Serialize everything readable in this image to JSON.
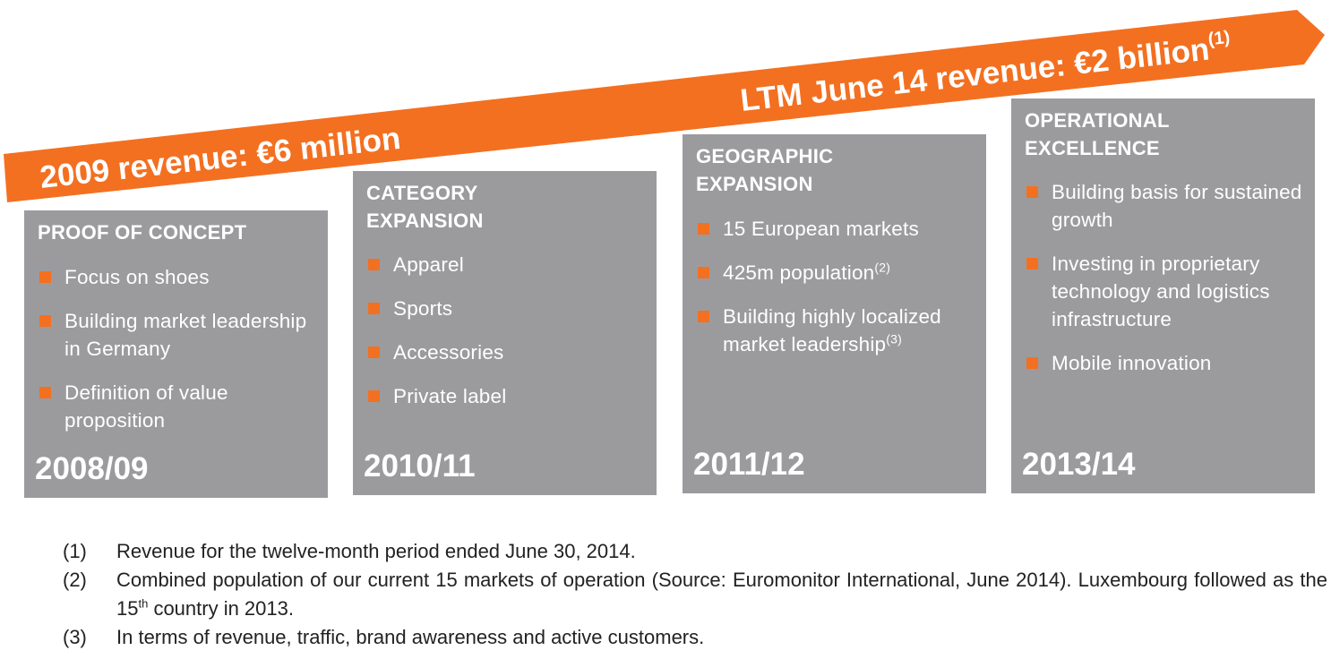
{
  "arrow": {
    "color": "#f37021",
    "start_label": "2009 revenue: €6 million",
    "end_label": "LTM June 14 revenue: €2 billion",
    "end_label_sup": "(1)"
  },
  "bullet_color": "#f37021",
  "box_color": "#9b9b9e",
  "stages": [
    {
      "title": "PROOF OF CONCEPT",
      "items": [
        {
          "text": "Focus on shoes",
          "sup": ""
        },
        {
          "text": "Building market leadership in Germany",
          "sup": ""
        },
        {
          "text": "Definition of value proposition",
          "sup": ""
        }
      ],
      "year": "2008/09"
    },
    {
      "title": "CATEGORY EXPANSION",
      "items": [
        {
          "text": "Apparel",
          "sup": ""
        },
        {
          "text": "Sports",
          "sup": ""
        },
        {
          "text": "Accessories",
          "sup": ""
        },
        {
          "text": "Private label",
          "sup": ""
        }
      ],
      "year": "2010/11"
    },
    {
      "title": "GEOGRAPHIC EXPANSION",
      "items": [
        {
          "text": "15 European markets",
          "sup": ""
        },
        {
          "text": "425m population",
          "sup": "(2)"
        },
        {
          "text": "Building highly localized market leadership",
          "sup": "(3)"
        }
      ],
      "year": "2011/12"
    },
    {
      "title": "OPERATIONAL EXCELLENCE",
      "items": [
        {
          "text": "Building basis for sustained growth",
          "sup": ""
        },
        {
          "text": "Investing in proprietary technology and logistics infrastructure",
          "sup": ""
        },
        {
          "text": "Mobile innovation",
          "sup": ""
        }
      ],
      "year": "2013/14"
    }
  ],
  "footnotes": [
    {
      "num": "(1)",
      "text": "Revenue for the twelve-month period ended June 30, 2014."
    },
    {
      "num": "(2)",
      "text": "Combined population of our current 15 markets of operation (Source: Euromonitor International, June 2014). Luxembourg followed as the 15",
      "sup": "th",
      "text_after": " country in 2013."
    },
    {
      "num": "(3)",
      "text": "In terms of revenue, traffic, brand awareness and active customers."
    }
  ]
}
